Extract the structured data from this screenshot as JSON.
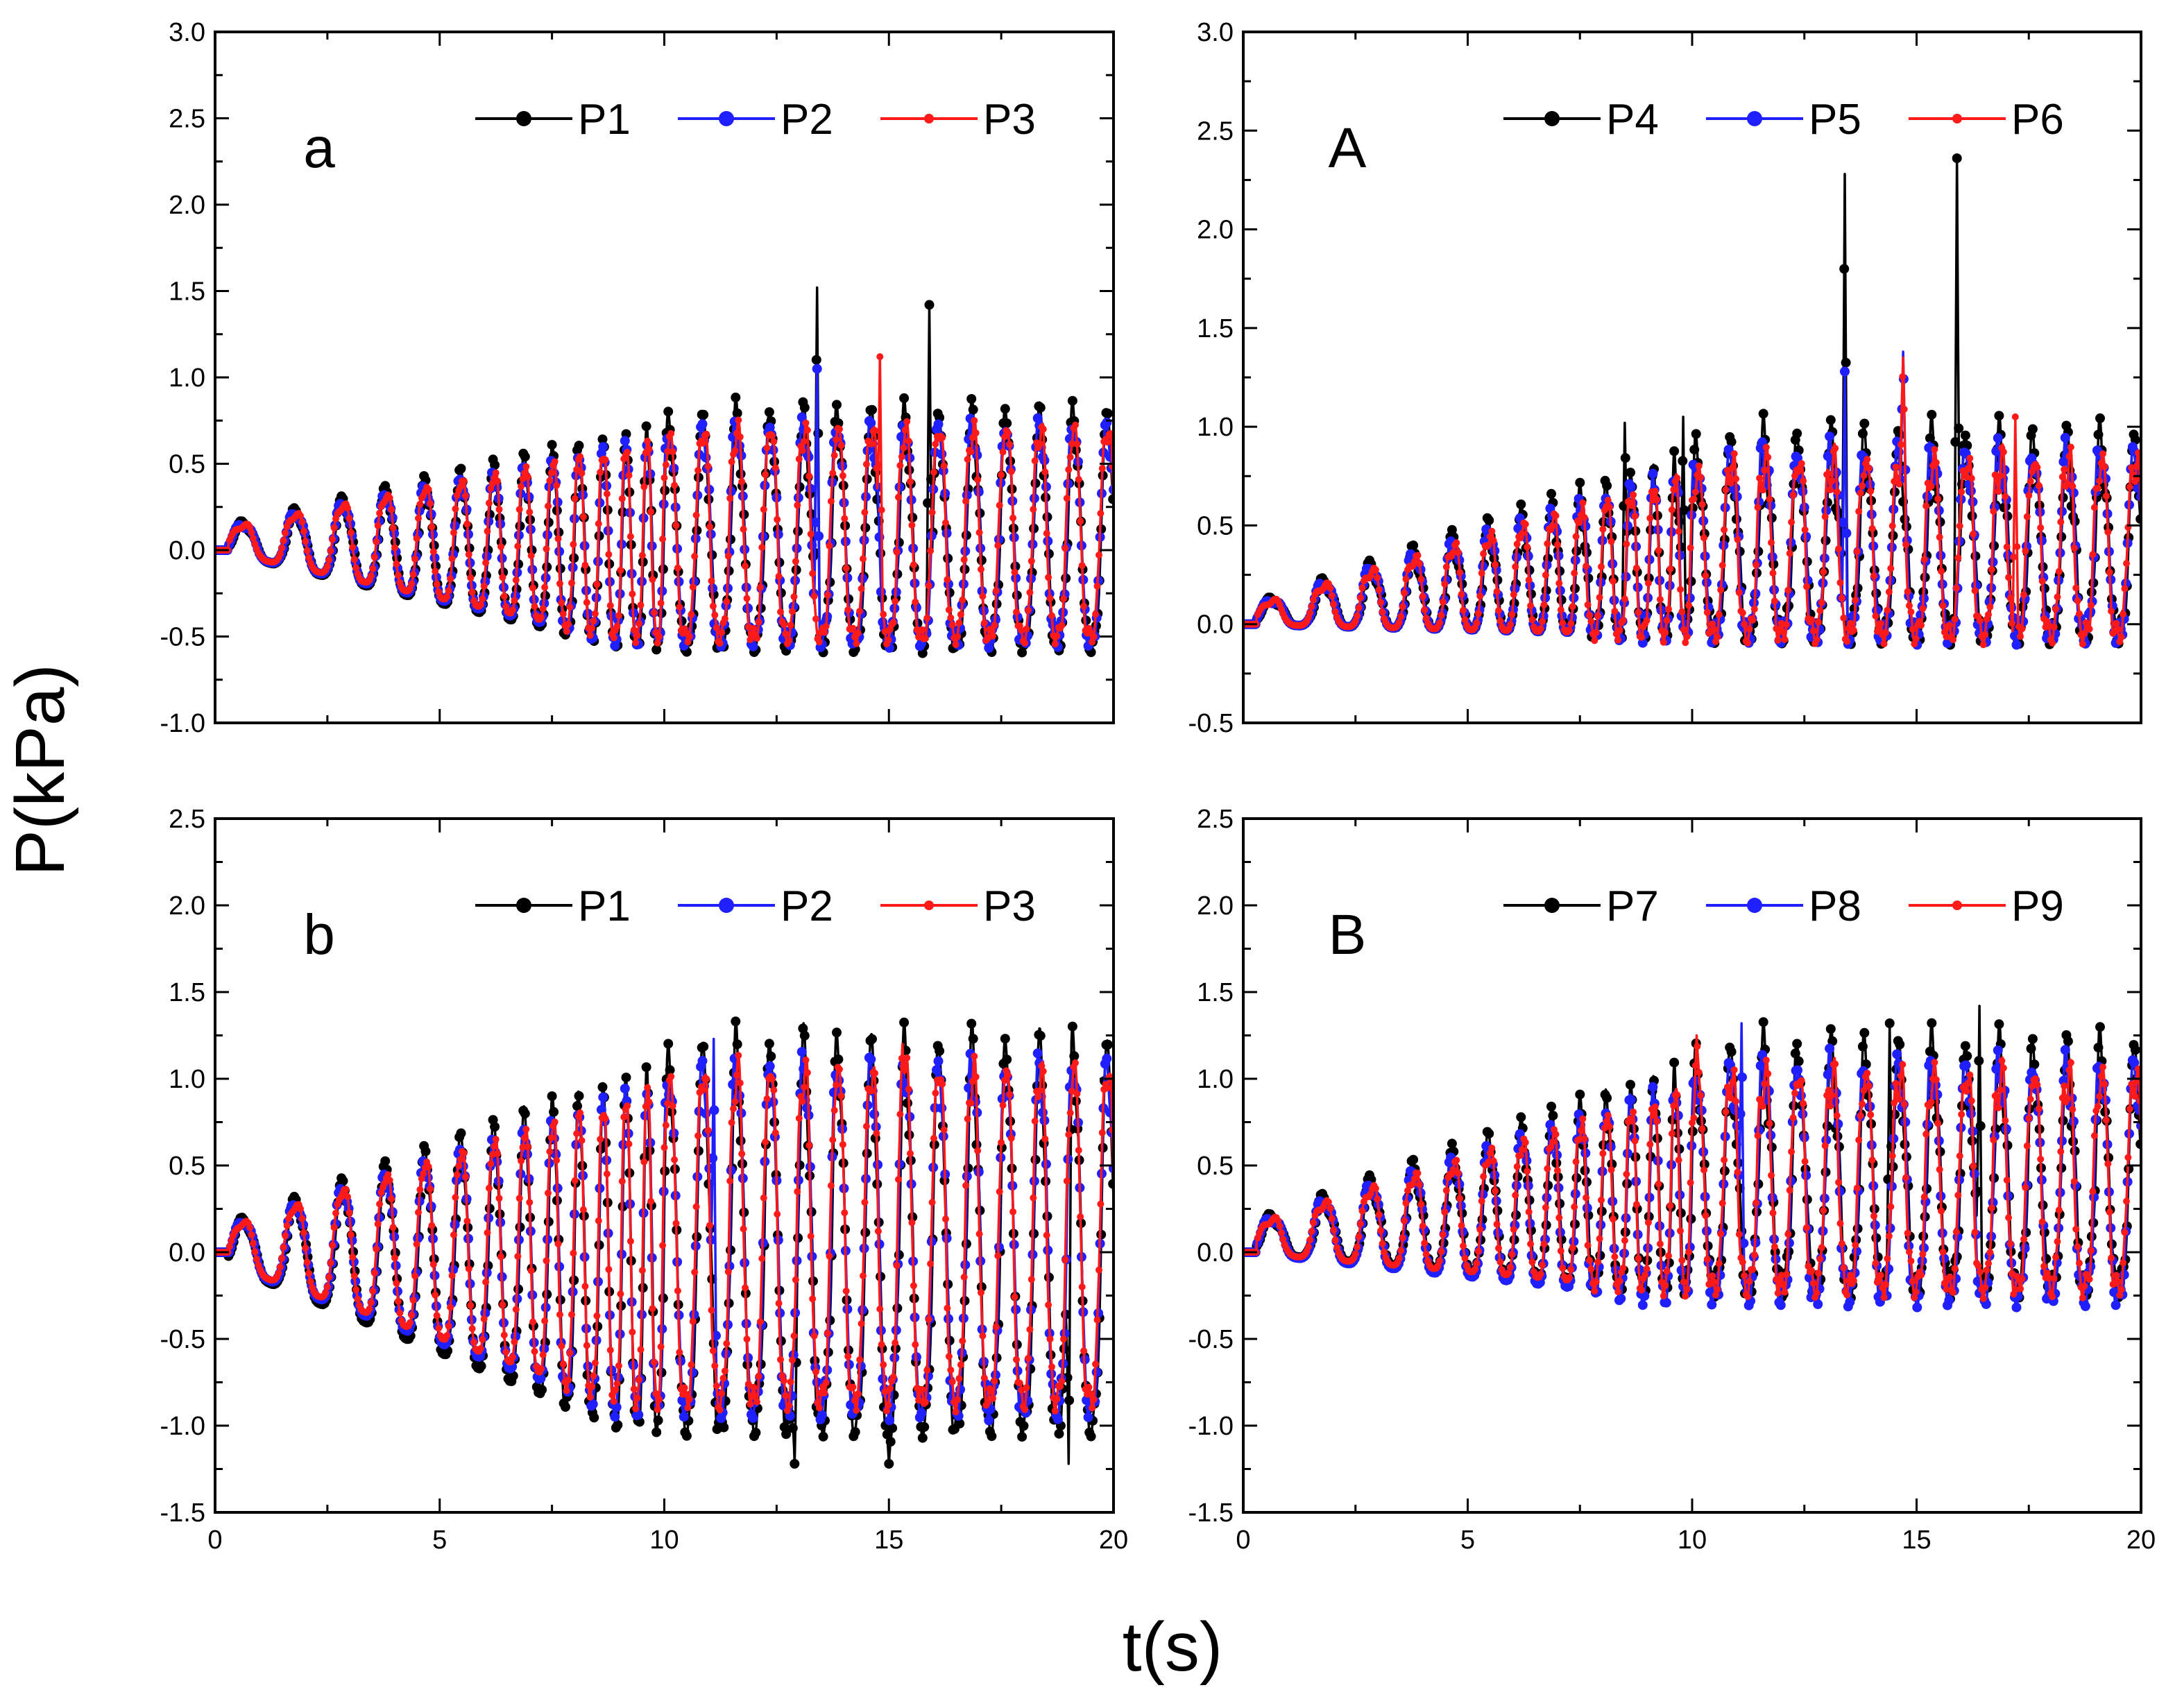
{
  "figure": {
    "xlabel": "t(s)",
    "ylabel": "P(kPa)"
  },
  "colors": {
    "P_black": "#000000",
    "P_blue": "#1f1fff",
    "P_red": "#ff1a1a"
  },
  "chart_data": [
    {
      "type": "line",
      "panel_label": "a",
      "x_range": [
        0,
        20
      ],
      "y_range": [
        -1.0,
        3.0
      ],
      "x_ticks": [
        "0",
        "5",
        "10",
        "15",
        "20"
      ],
      "y_ticks": [
        "-1.0",
        "-0.5",
        "0.0",
        "0.5",
        "1.0",
        "1.5",
        "2.0",
        "2.5",
        "3.0"
      ],
      "legend": [
        "P1",
        "P2",
        "P3"
      ],
      "series": [
        {
          "name": "P1",
          "color": "#000000",
          "amp0": 0.12,
          "trough0": 0.0,
          "max_amp": 0.78,
          "min_trough": -0.55,
          "spikes": [
            [
              13.4,
              1.52
            ],
            [
              15.9,
              1.42
            ]
          ]
        },
        {
          "name": "P2",
          "color": "#1f1fff",
          "amp0": 0.12,
          "trough0": 0.0,
          "max_amp": 0.78,
          "min_trough": -0.52,
          "spikes": [
            [
              13.4,
              1.05
            ]
          ]
        },
        {
          "name": "P3",
          "color": "#ff1a1a",
          "amp0": 0.12,
          "trough0": 0.0,
          "max_amp": 0.78,
          "min_trough": -0.5,
          "spikes": [
            [
              14.8,
              1.12
            ]
          ]
        }
      ]
    },
    {
      "type": "line",
      "panel_label": "A",
      "x_range": [
        0,
        20
      ],
      "y_range": [
        -0.5,
        3.0
      ],
      "x_ticks": [
        "0",
        "5",
        "10",
        "15",
        "20"
      ],
      "y_ticks": [
        "-0.5",
        "0.0",
        "0.5",
        "1.0",
        "1.5",
        "2.0",
        "2.5",
        "3.0"
      ],
      "legend": [
        "P4",
        "P5",
        "P6"
      ],
      "series": [
        {
          "name": "P4",
          "color": "#000000",
          "amp0": 0.08,
          "trough0": 0.0,
          "max_amp": 0.92,
          "min_trough": -0.05,
          "spikes": [
            [
              13.4,
              2.28
            ],
            [
              15.9,
              2.36
            ],
            [
              8.5,
              1.02
            ],
            [
              9.8,
              1.05
            ]
          ]
        },
        {
          "name": "P5",
          "color": "#1f1fff",
          "amp0": 0.08,
          "trough0": 0.0,
          "max_amp": 0.92,
          "min_trough": -0.05,
          "spikes": [
            [
              13.4,
              1.28
            ],
            [
              14.7,
              1.38
            ]
          ]
        },
        {
          "name": "P6",
          "color": "#ff1a1a",
          "amp0": 0.08,
          "trough0": 0.0,
          "max_amp": 0.9,
          "min_trough": -0.05,
          "spikes": [
            [
              14.7,
              1.35
            ],
            [
              17.2,
              1.05
            ]
          ]
        }
      ]
    },
    {
      "type": "line",
      "panel_label": "b",
      "x_range": [
        0,
        20
      ],
      "y_range": [
        -1.5,
        2.5
      ],
      "x_ticks": [
        "0",
        "5",
        "10",
        "15",
        "20"
      ],
      "y_ticks": [
        "-1.5",
        "-1.0",
        "-0.5",
        "0.0",
        "0.5",
        "1.0",
        "1.5",
        "2.0",
        "2.5"
      ],
      "legend": [
        "P1",
        "P2",
        "P3"
      ],
      "series": [
        {
          "name": "P1",
          "color": "#000000",
          "amp0": 0.13,
          "trough0": -0.05,
          "max_amp": 1.18,
          "min_trough": -1.0,
          "spikes": [
            [
              12.9,
              -1.22
            ],
            [
              15.0,
              -1.22
            ],
            [
              19.0,
              -1.22
            ]
          ]
        },
        {
          "name": "P2",
          "color": "#1f1fff",
          "amp0": 0.13,
          "trough0": -0.05,
          "max_amp": 1.18,
          "min_trough": -0.9,
          "spikes": [
            [
              11.1,
              1.23
            ]
          ]
        },
        {
          "name": "P3",
          "color": "#ff1a1a",
          "amp0": 0.13,
          "trough0": -0.05,
          "max_amp": 1.18,
          "min_trough": -0.85,
          "spikes": [
            [
              15.3,
              1.2
            ]
          ]
        }
      ]
    },
    {
      "type": "line",
      "panel_label": "B",
      "x_range": [
        0,
        20
      ],
      "y_range": [
        -1.5,
        2.5
      ],
      "x_ticks": [
        "0",
        "5",
        "10",
        "15",
        "20"
      ],
      "y_ticks": [
        "-1.5",
        "-1.0",
        "-0.5",
        "0.0",
        "0.5",
        "1.0",
        "1.5",
        "2.0",
        "2.5"
      ],
      "legend": [
        "P7",
        "P8",
        "P9"
      ],
      "series": [
        {
          "name": "P7",
          "color": "#000000",
          "amp0": 0.15,
          "trough0": 0.0,
          "max_amp": 1.15,
          "min_trough": -0.2,
          "spikes": [
            [
              14.4,
              1.32
            ],
            [
              16.4,
              1.42
            ]
          ]
        },
        {
          "name": "P8",
          "color": "#1f1fff",
          "amp0": 0.15,
          "trough0": 0.0,
          "max_amp": 1.15,
          "min_trough": -0.25,
          "spikes": [
            [
              11.1,
              1.32
            ]
          ]
        },
        {
          "name": "P9",
          "color": "#ff1a1a",
          "amp0": 0.15,
          "trough0": 0.0,
          "max_amp": 1.12,
          "min_trough": -0.2,
          "spikes": [
            [
              10.1,
              1.25
            ]
          ]
        }
      ]
    }
  ]
}
